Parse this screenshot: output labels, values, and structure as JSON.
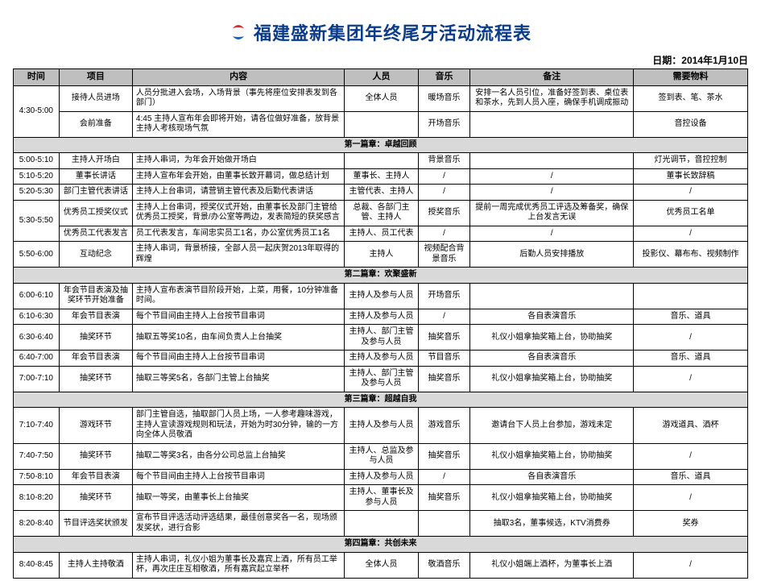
{
  "title": "福建盛新集团年终尾牙活动流程表",
  "date_label": "日期：2014年1月10日",
  "logo": {
    "top_color": "#d92b2b",
    "bottom_color": "#1c5fb0"
  },
  "columns": [
    "时间",
    "项目",
    "内容",
    "人员",
    "音乐",
    "备注",
    "需要物料"
  ],
  "rows": [
    {
      "type": "row",
      "time": "4:30-5:00",
      "time_rowspan": 2,
      "item": "接待人员进场",
      "content": "人员分批进入会场，入场背景（事先将座位安排表发到各部门）",
      "people": "全体人员",
      "music": "暖场音乐",
      "remark": "安排一名人员引位，准备好签到表、桌位表和茶水，先到人员入座，确保手机调成振动",
      "material": "签到表、笔、茶水"
    },
    {
      "type": "row",
      "item": "会前准备",
      "content": "4:45 主持人宣布年会即将开始，请各位做好准备，放背景主持人考核现场气氛",
      "people": "",
      "music": "开场音乐",
      "remark": "",
      "material": "音控设备"
    },
    {
      "type": "section",
      "label": "第一篇章：卓越回顾"
    },
    {
      "type": "row",
      "time": "5:00-5:10",
      "item": "主持人开场白",
      "content": "主持人串词，为年会开始做开场白",
      "people": "",
      "music": "背景音乐",
      "remark": "",
      "material": "灯光调节，音控控制"
    },
    {
      "type": "row",
      "time": "5:10-5:20",
      "item": "董事长讲话",
      "content": "主持人宣布年会开始，由董事长致开幕词，做总结计划",
      "people": "董事长、主持人",
      "music": "/",
      "remark": "/",
      "material": "董事长致辞稿"
    },
    {
      "type": "row",
      "time": "5:20-5:30",
      "item": "部门主管代表讲话",
      "content": "主持人上台串词，请营销主管代表及后勤代表讲话",
      "people": "主管代表、主持人",
      "music": "/",
      "remark": "/",
      "material": "/"
    },
    {
      "type": "row",
      "time": "5:30-5:50",
      "time_rowspan": 2,
      "item": "优秀员工授奖仪式",
      "content": "主持人上台串词，授奖仪式开始，由董事长及部门主管给优秀员工授奖，背景/办公室等两边，发表简短的获奖感言",
      "people": "总裁、各部门主管、主持人",
      "music": "授奖音乐",
      "remark": "提前一周完成优秀员工评选及筹备奖，确保上台发言无误",
      "material": "优秀员工名单"
    },
    {
      "type": "row",
      "item": "优秀员工代表发言",
      "content": "员工代表发言，车间忠实员工1名，办公室优秀员工1名",
      "people": "主持人、员工代表",
      "music": "/",
      "remark": "/",
      "material": "/"
    },
    {
      "type": "row",
      "time": "5:50-6:00",
      "item": "互动纪念",
      "content": "主持人串词，背景桥接，全部人员一起庆贺2013年取得的辉煌",
      "people": "主持人",
      "music": "视频配合背景音乐",
      "remark": "后勤人员安排播放",
      "material": "投影仪、幕布布、视频制作"
    },
    {
      "type": "section",
      "label": "第二篇章：欢聚盛新"
    },
    {
      "type": "row",
      "time": "6:00-6:10",
      "item": "年会节目表演及抽奖环节开始准备",
      "content": "主持人宣布表演节目阶段开始，上菜，用餐，10分钟准备时间。",
      "people": "主持人及参与人员",
      "music": "开场音乐",
      "remark": "",
      "material": ""
    },
    {
      "type": "row",
      "time": "6:10-6:30",
      "item": "年会节目表演",
      "content": "每个节目间由主持人上台按节目串词",
      "people": "主持人及参与人员",
      "music": "/",
      "remark": "各自表演音乐",
      "material": "音乐、道具"
    },
    {
      "type": "row",
      "time": "6:30-6:40",
      "item": "抽奖环节",
      "content": "抽取五等奖10名，由车间负责人上台抽奖",
      "people": "主持人、部门主管及参与人员",
      "music": "抽奖音乐",
      "remark": "礼仪小姐拿抽奖箱上台，协助抽奖",
      "material": "/"
    },
    {
      "type": "row",
      "time": "6:40-7:00",
      "item": "年会节目表演",
      "content": "每个节目间由主持人上台按节目串词",
      "people": "主持人及参与人员",
      "music": "节目音乐",
      "remark": "各自表演音乐",
      "material": "音乐、道具"
    },
    {
      "type": "row",
      "time": "7:00-7:10",
      "item": "抽奖环节",
      "content": "抽取三等奖5名，各部门主管上台抽奖",
      "people": "主持人、部门主管及参与人员",
      "music": "抽奖音乐",
      "remark": "礼仪小姐拿抽奖箱上台，协助抽奖",
      "material": "/"
    },
    {
      "type": "section",
      "label": "第三篇章：超越自我"
    },
    {
      "type": "row",
      "time": "7:10-7:40",
      "item": "游戏环节",
      "content": "部门主管自选，抽取部门人员上场，一人参考趣味游戏，主持人宣读游戏规则和玩法，开始为时30分钟，输的一方向全体人员敬酒",
      "people": "主持人及参与人员",
      "music": "游戏音乐",
      "remark": "邀请台下人员上台参加，游戏未定",
      "material": "游戏道具、酒杯"
    },
    {
      "type": "row",
      "time": "7:40-7:50",
      "item": "抽奖环节",
      "content": "抽取二等奖3名，由各分公司总监上台抽奖",
      "people": "主持人、总监及参与人员",
      "music": "抽奖音乐",
      "remark": "礼仪小姐拿抽奖箱上台，协助抽奖",
      "material": "/"
    },
    {
      "type": "row",
      "time": "7:50-8:10",
      "item": "年会节目表演",
      "content": "每个节目间由主持人上台按节目串词",
      "people": "主持人及参与人员",
      "music": "/",
      "remark": "各自表演音乐",
      "material": "音乐、道具"
    },
    {
      "type": "row",
      "time": "8:10-8:20",
      "item": "抽奖环节",
      "content": "抽取一等奖，由董事长上台抽奖",
      "people": "主持人、董事长及参与人员",
      "music": "抽奖音乐",
      "remark": "礼仪小姐拿抽奖箱上台，协助抽奖",
      "material": "/"
    },
    {
      "type": "row",
      "time": "8:20-8:40",
      "item": "节目评选奖状颁发",
      "content": "宣布节目评选活动评选结果，最佳创意奖各一名，现场颁发奖状，进行合影",
      "people": "",
      "music": "",
      "remark": "抽取3名，董事候选，KTV消费券",
      "material": "奖券"
    },
    {
      "type": "section",
      "label": "第四篇章：共创未来"
    },
    {
      "type": "row",
      "time": "8:40-8:45",
      "item": "主持人主持敬酒",
      "content": "主持人串词，礼仪小姐为董事长及嘉宾上酒，所有员工举杯，再次庄庄互相敬酒，所有嘉宾起立举杯",
      "people": "全体人员",
      "music": "敬酒音乐",
      "remark": "礼仪小姐端上酒杯，为董事长上酒",
      "material": "/"
    }
  ]
}
